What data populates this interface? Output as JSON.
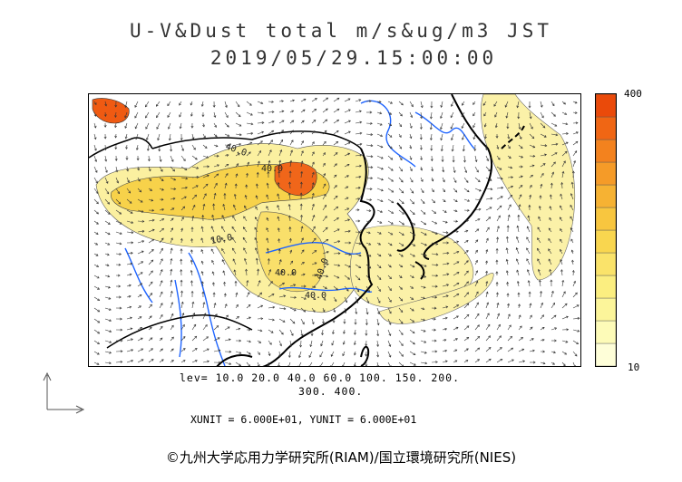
{
  "title": {
    "line1": "U-V&Dust total m/s&ug/m3 JST",
    "line2": "2019/05/29.15:00:00"
  },
  "colorbar": {
    "max_label": "400",
    "min_label": "10",
    "colors": [
      "#fefed8",
      "#fdfbb8",
      "#fcf59a",
      "#fbee80",
      "#fae36a",
      "#f9d64f",
      "#f8c63f",
      "#f6b233",
      "#f59b28",
      "#f3821e",
      "#f06614",
      "#ea4a0a"
    ]
  },
  "levels": {
    "line1": "lev= 10.0 20.0 40.0 60.0 100. 150. 200.",
    "line2": "300. 400."
  },
  "units": "XUNIT = 6.000E+01, YUNIT = 6.000E+01",
  "contour_labels": [
    "40.0",
    "40.0",
    "10.0",
    "40.0",
    "40.0",
    "40.0"
  ],
  "credit": "©九州大学応用力学研究所(RIAM)/国立環境研究所(NIES)",
  "colors": {
    "coast": "#000000",
    "river": "#1e64ff",
    "dust_low": "#fbf1a0"
  }
}
